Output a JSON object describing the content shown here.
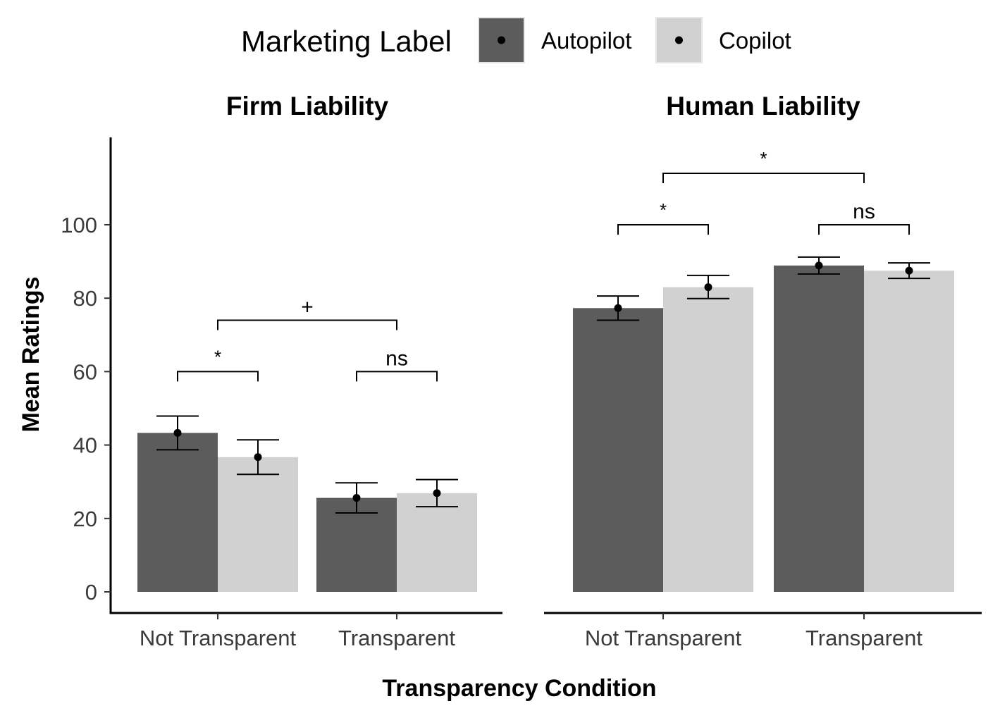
{
  "chart_data": {
    "type": "bar",
    "legend": {
      "title": "Marketing Label",
      "placement": "top",
      "entries": [
        {
          "name": "Autopilot",
          "color": "#5c5c5c"
        },
        {
          "name": "Copilot",
          "color": "#d1d1d1"
        }
      ]
    },
    "xlabel": "Transparency Condition",
    "ylabel": "Mean Ratings",
    "categories": [
      "Not Transparent",
      "Transparent"
    ],
    "ylim": [
      -6,
      123
    ],
    "yticks": [
      0,
      20,
      40,
      60,
      80,
      100
    ],
    "grid": false,
    "panels": [
      {
        "title": "Firm Liability",
        "series": [
          {
            "name": "Autopilot",
            "values": [
              43.3,
              25.6
            ],
            "err_low": [
              38.7,
              21.5
            ],
            "err_high": [
              47.9,
              29.7
            ]
          },
          {
            "name": "Copilot",
            "values": [
              36.7,
              26.9
            ],
            "err_low": [
              32.0,
              23.2
            ],
            "err_high": [
              41.4,
              30.6
            ]
          }
        ],
        "annotations": [
          {
            "label": "*",
            "type": "within",
            "category": "Not Transparent",
            "y": 60
          },
          {
            "label": "ns",
            "type": "within",
            "category": "Transparent",
            "y": 60
          },
          {
            "label": "+",
            "type": "between",
            "y": 74
          }
        ]
      },
      {
        "title": "Human Liability",
        "series": [
          {
            "name": "Autopilot",
            "values": [
              77.3,
              88.9
            ],
            "err_low": [
              74.0,
              86.6
            ],
            "err_high": [
              80.6,
              91.2
            ]
          },
          {
            "name": "Copilot",
            "values": [
              83.0,
              87.5
            ],
            "err_low": [
              79.9,
              85.4
            ],
            "err_high": [
              86.2,
              89.6
            ]
          }
        ],
        "annotations": [
          {
            "label": "*",
            "type": "within",
            "category": "Not Transparent",
            "y": 100
          },
          {
            "label": "ns",
            "type": "within",
            "category": "Transparent",
            "y": 100
          },
          {
            "label": "*",
            "type": "between",
            "y": 114
          }
        ]
      }
    ]
  }
}
